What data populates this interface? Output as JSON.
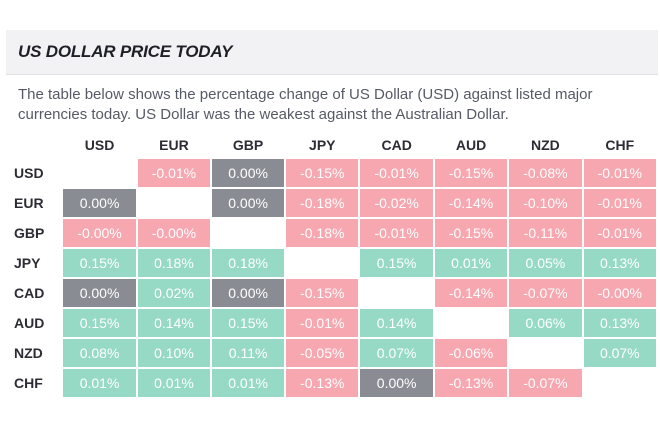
{
  "title": "US DOLLAR PRICE TODAY",
  "description": "The table below shows the percentage change of US Dollar (USD) against listed major currencies today. US Dollar was the weakest against the Australian Dollar.",
  "columns": [
    "USD",
    "EUR",
    "GBP",
    "JPY",
    "CAD",
    "AUD",
    "NZD",
    "CHF"
  ],
  "colors": {
    "negative": "#f7a7b0",
    "positive": "#96dac6",
    "neutral": "#8a8c94"
  },
  "rows": [
    {
      "label": "USD",
      "cells": [
        "",
        "-0.01%",
        "0.00%",
        "-0.15%",
        "-0.01%",
        "-0.15%",
        "-0.08%",
        "-0.01%"
      ]
    },
    {
      "label": "EUR",
      "cells": [
        "0.00%",
        "",
        "0.00%",
        "-0.18%",
        "-0.02%",
        "-0.14%",
        "-0.10%",
        "-0.01%"
      ]
    },
    {
      "label": "GBP",
      "cells": [
        "-0.00%",
        "-0.00%",
        "",
        "-0.18%",
        "-0.01%",
        "-0.15%",
        "-0.11%",
        "-0.01%"
      ]
    },
    {
      "label": "JPY",
      "cells": [
        "0.15%",
        "0.18%",
        "0.18%",
        "",
        "0.15%",
        "0.01%",
        "0.05%",
        "0.13%"
      ]
    },
    {
      "label": "CAD",
      "cells": [
        "0.00%",
        "0.02%",
        "0.00%",
        "-0.15%",
        "",
        "-0.14%",
        "-0.07%",
        "-0.00%"
      ]
    },
    {
      "label": "AUD",
      "cells": [
        "0.15%",
        "0.14%",
        "0.15%",
        "-0.01%",
        "0.14%",
        "",
        "0.06%",
        "0.13%"
      ]
    },
    {
      "label": "NZD",
      "cells": [
        "0.08%",
        "0.10%",
        "0.11%",
        "-0.05%",
        "0.07%",
        "-0.06%",
        "",
        "0.07%"
      ]
    },
    {
      "label": "CHF",
      "cells": [
        "0.01%",
        "0.01%",
        "0.01%",
        "-0.13%",
        "0.00%",
        "-0.13%",
        "-0.07%",
        ""
      ]
    }
  ]
}
